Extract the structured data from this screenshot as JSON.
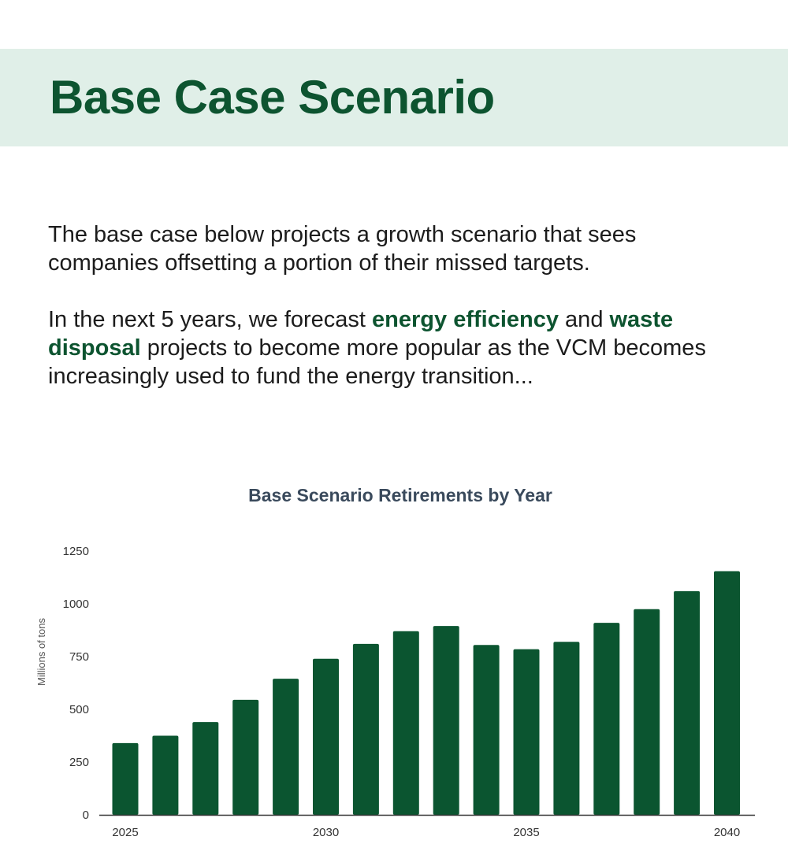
{
  "header": {
    "title": "Base Case Scenario"
  },
  "intro": {
    "p1": "The base case below projects a growth scenario that sees companies offsetting a portion of their missed targets.",
    "p2_a": "In the next 5 years, we forecast ",
    "p2_hl1": "energy efficiency",
    "p2_b": " and ",
    "p2_hl2": "waste disposal",
    "p2_c": " projects to become more popular as the VCM becomes increasingly used to fund the energy transition..."
  },
  "colors": {
    "accent": "#0d5430",
    "band": "#e0efe8",
    "bar": "#0b5530"
  },
  "chart_data": {
    "type": "bar",
    "title": "Base Scenario Retirements by Year",
    "xlabel": "",
    "ylabel": "Millions of tons",
    "x": [
      2025,
      2026,
      2027,
      2028,
      2029,
      2030,
      2031,
      2032,
      2033,
      2034,
      2035,
      2036,
      2037,
      2038,
      2039,
      2040
    ],
    "values": [
      340,
      375,
      440,
      545,
      645,
      740,
      810,
      870,
      895,
      805,
      785,
      820,
      910,
      975,
      1060,
      1155
    ],
    "ylim": [
      0,
      1250
    ],
    "yticks": [
      0,
      250,
      500,
      750,
      1000,
      1250
    ],
    "xticks": [
      2025,
      2030,
      2035,
      2040
    ],
    "grid": false,
    "legend": "none"
  }
}
